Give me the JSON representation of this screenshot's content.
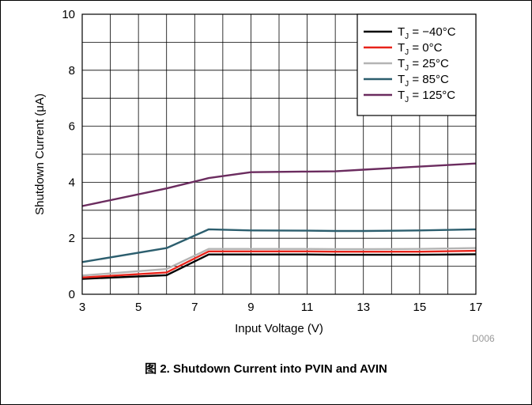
{
  "chart_data": {
    "type": "line",
    "xlabel": "Input Voltage (V)",
    "ylabel": "Shutdown Current (μA)",
    "xlim": [
      3,
      17
    ],
    "ylim": [
      0,
      10
    ],
    "x_ticks": [
      "3",
      "5",
      "7",
      "9",
      "11",
      "13",
      "15",
      "17"
    ],
    "y_ticks": [
      "0",
      "2",
      "4",
      "6",
      "8",
      "10"
    ],
    "grid": true,
    "legend_position": "top-right",
    "id_label": "D006",
    "series": [
      {
        "name": "TJ = −40°C",
        "legend_main": "T",
        "legend_sub": "J",
        "legend_rest": " = −40°C",
        "color": "#000000",
        "x": [
          3,
          6,
          7.5,
          9,
          11,
          12,
          13,
          15,
          17
        ],
        "y": [
          0.55,
          0.68,
          1.42,
          1.42,
          1.42,
          1.41,
          1.41,
          1.41,
          1.43
        ]
      },
      {
        "name": "TJ = 0°C",
        "legend_main": "T",
        "legend_sub": "J",
        "legend_rest": " = 0°C",
        "color": "#e8231a",
        "x": [
          3,
          6,
          7.5,
          9,
          11,
          12,
          13,
          15,
          17
        ],
        "y": [
          0.6,
          0.78,
          1.53,
          1.53,
          1.53,
          1.52,
          1.52,
          1.52,
          1.55
        ]
      },
      {
        "name": "TJ = 25°C",
        "legend_main": "T",
        "legend_sub": "J",
        "legend_rest": " = 25°C",
        "color": "#b4b4b4",
        "x": [
          3,
          6,
          7.5,
          9,
          11,
          12,
          13,
          15,
          17
        ],
        "y": [
          0.67,
          0.9,
          1.62,
          1.62,
          1.62,
          1.61,
          1.61,
          1.62,
          1.65
        ]
      },
      {
        "name": "TJ = 85°C",
        "legend_main": "T",
        "legend_sub": "J",
        "legend_rest": " = 85°C",
        "color": "#2c5e6e",
        "x": [
          3,
          6,
          7.5,
          9,
          11,
          12,
          13,
          15,
          17
        ],
        "y": [
          1.15,
          1.65,
          2.32,
          2.28,
          2.27,
          2.26,
          2.26,
          2.28,
          2.32
        ]
      },
      {
        "name": "TJ = 125°C",
        "legend_main": "T",
        "legend_sub": "J",
        "legend_rest": " = 125°C",
        "color": "#6b2c5f",
        "x": [
          3,
          6,
          7.5,
          9,
          11,
          12,
          13,
          15,
          17
        ],
        "y": [
          3.15,
          3.78,
          4.15,
          4.36,
          4.38,
          4.39,
          4.45,
          4.56,
          4.67
        ]
      }
    ]
  },
  "caption": "图 2. Shutdown Current into PVIN and AVIN"
}
